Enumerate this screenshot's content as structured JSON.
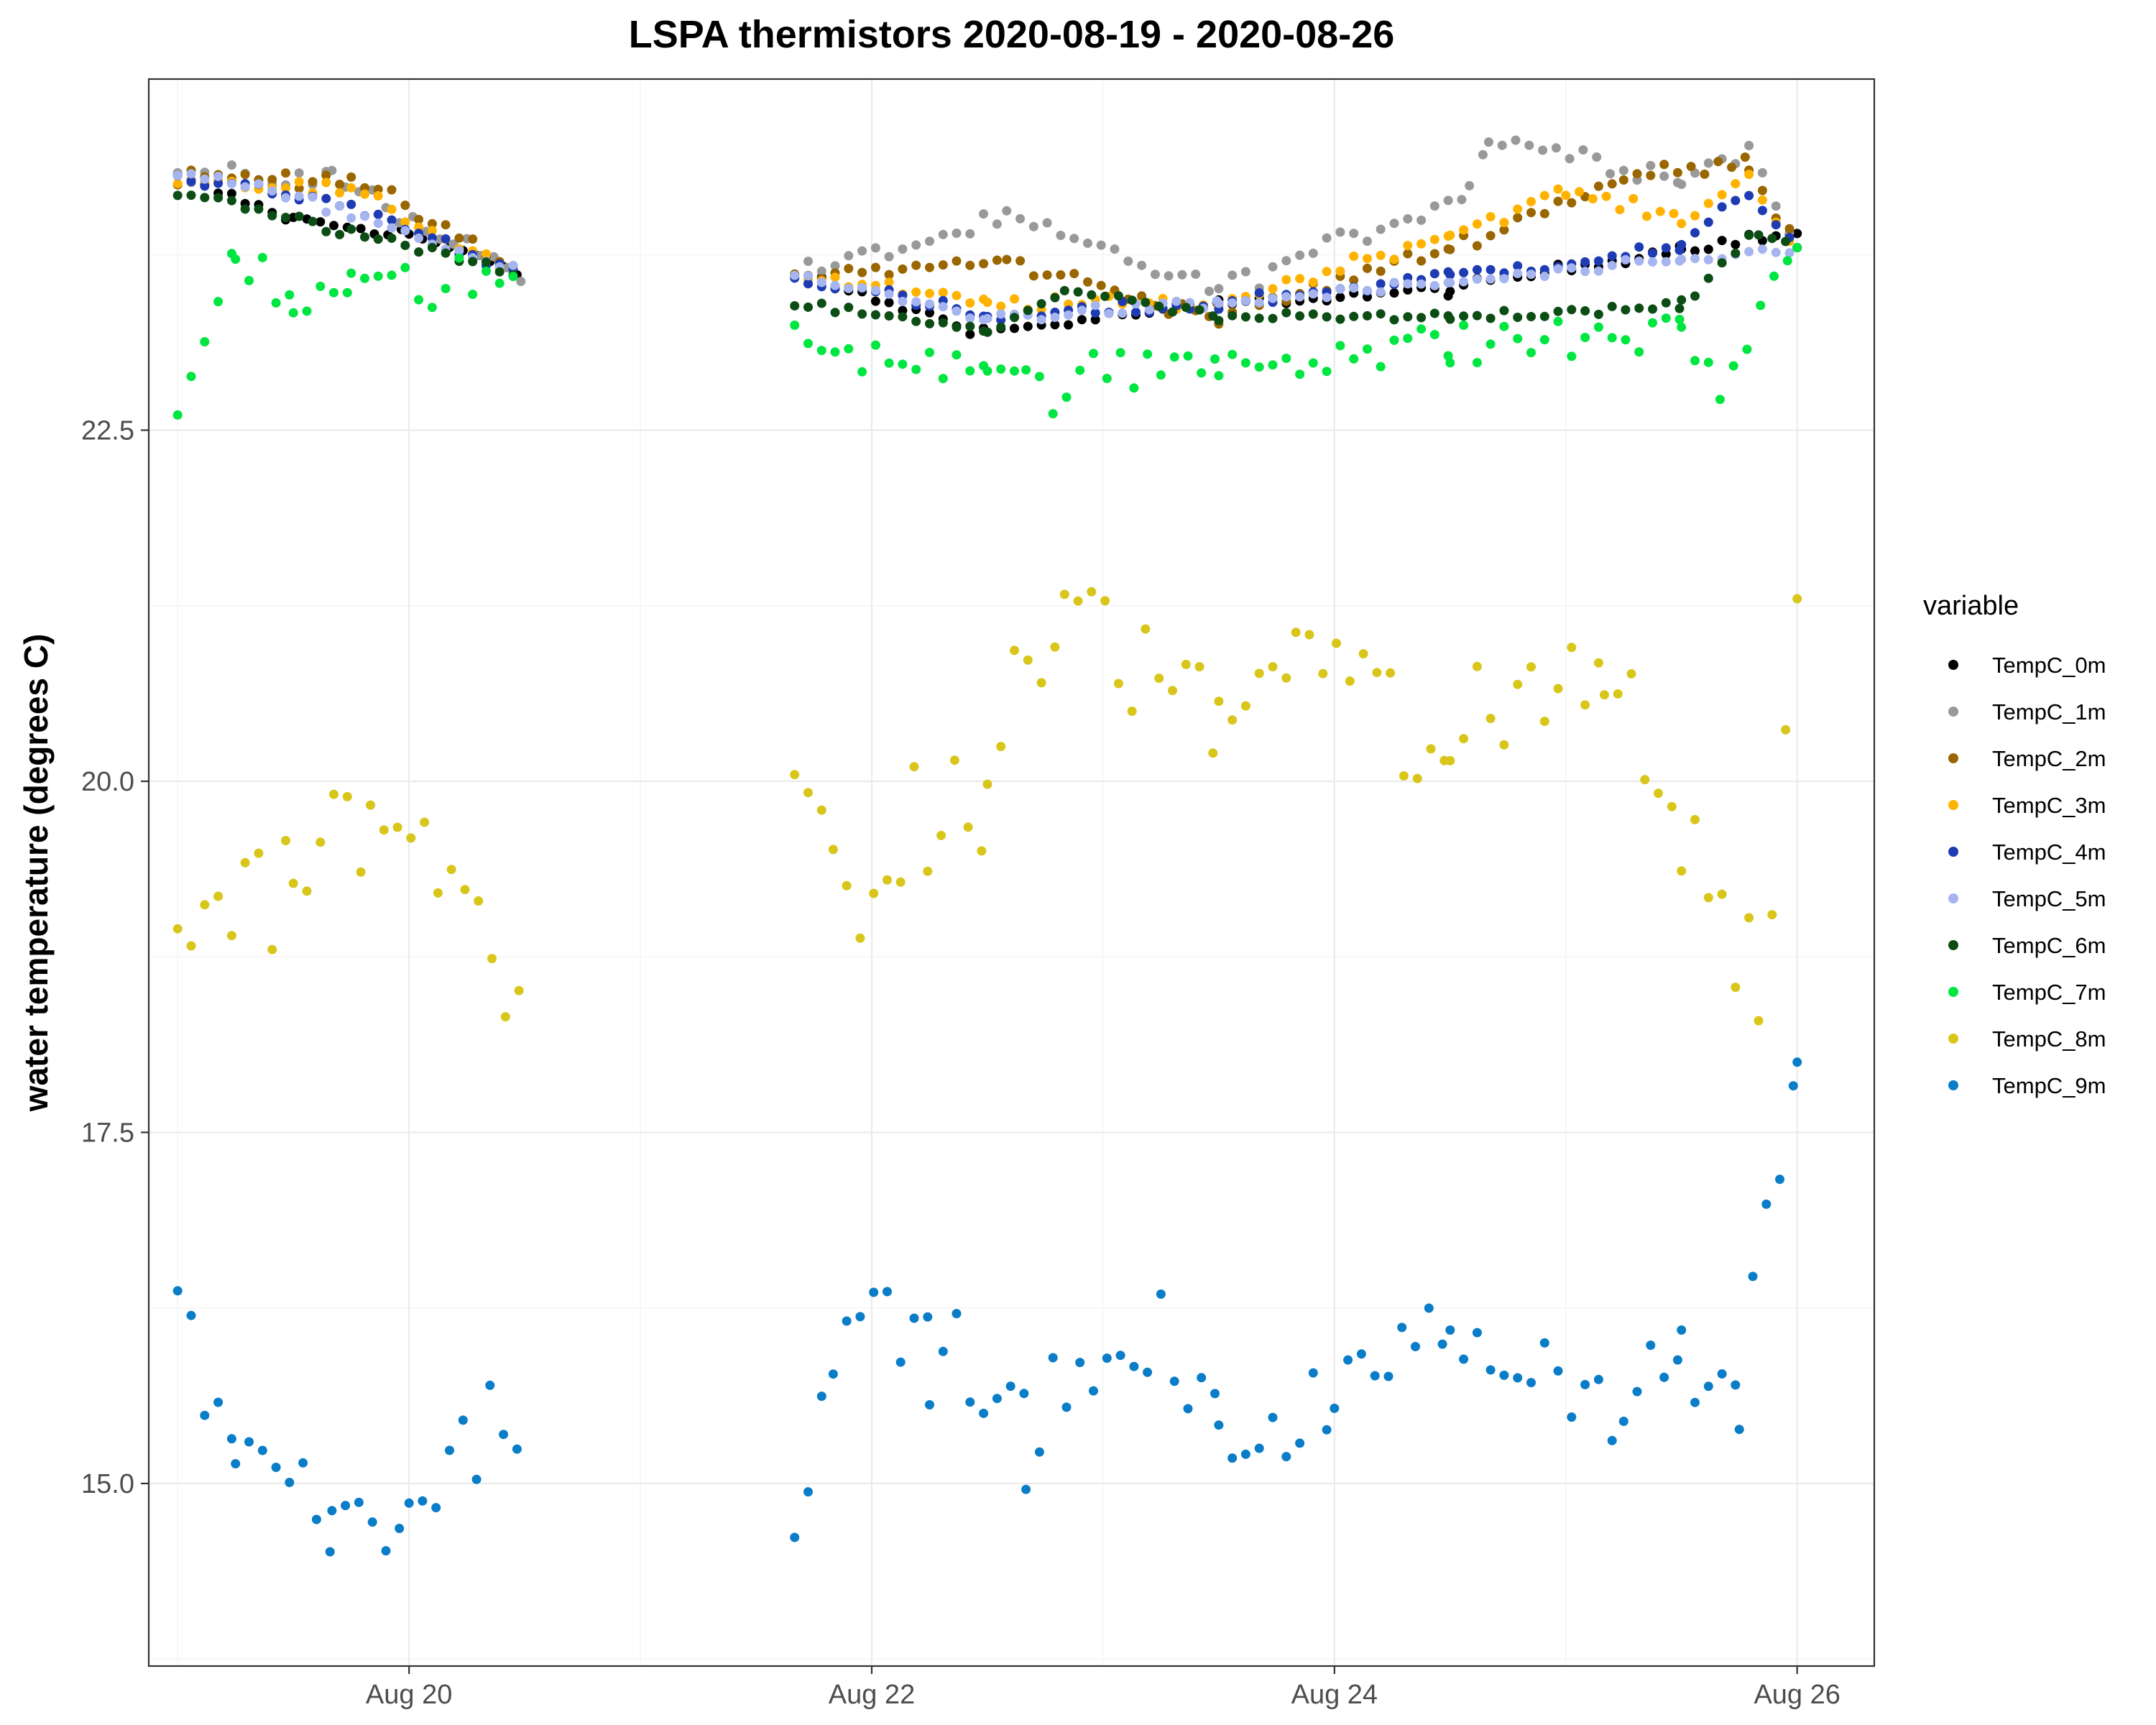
{
  "chart_data": {
    "type": "scatter",
    "title": "LSPA thermistors 2020-08-19 - 2020-08-26",
    "xlabel": "",
    "ylabel": "water temperature (degrees C)",
    "xlim": [
      "2020-08-18T21:00",
      "2020-08-26T08:00"
    ],
    "ylim": [
      13.7,
      25.0
    ],
    "x_ticks": [
      {
        "label": "Aug 20",
        "value": "2020-08-20"
      },
      {
        "label": "Aug 22",
        "value": "2020-08-22"
      },
      {
        "label": "Aug 24",
        "value": "2020-08-24"
      },
      {
        "label": "Aug 26",
        "value": "2020-08-26"
      }
    ],
    "y_ticks": [
      {
        "label": "15.0",
        "value": 15.0
      },
      {
        "label": "17.5",
        "value": 17.5
      },
      {
        "label": "20.0",
        "value": 20.0
      },
      {
        "label": "22.5",
        "value": 22.5
      }
    ],
    "grid": true,
    "legend": {
      "title": "variable",
      "position": "right"
    },
    "data_gap": {
      "start": "2020-08-20T12:00",
      "end": "2020-08-21T16:00"
    },
    "series": [
      {
        "name": "TempC_0m",
        "color": "#000000",
        "x": [
          "2020-08-19T00:00",
          "2020-08-19T12:00",
          "2020-08-20T00:00",
          "2020-08-20T12:00",
          "2020-08-21T16:00",
          "2020-08-22T12:00",
          "2020-08-23T12:00",
          "2020-08-24T12:00",
          "2020-08-25T12:00",
          "2020-08-26T00:00"
        ],
        "y": [
          24.3,
          24.0,
          23.9,
          23.6,
          23.6,
          23.2,
          23.4,
          23.5,
          23.8,
          23.9
        ]
      },
      {
        "name": "TempC_1m",
        "color": "#999999",
        "x": [
          "2020-08-19T00:00",
          "2020-08-19T16:00",
          "2020-08-20T12:00",
          "2020-08-21T16:00",
          "2020-08-22T14:00",
          "2020-08-23T12:00",
          "2020-08-24T14:00",
          "2020-08-24T16:00",
          "2020-08-25T12:00",
          "2020-08-25T19:00",
          "2020-08-26T00:00"
        ],
        "y": [
          24.3,
          24.3,
          23.6,
          23.6,
          24.0,
          23.5,
          24.2,
          24.6,
          24.3,
          24.5,
          23.8
        ]
      },
      {
        "name": "TempC_2m",
        "color": "#996600",
        "x": [
          "2020-08-19T00:00",
          "2020-08-19T18:00",
          "2020-08-20T12:00",
          "2020-08-21T16:00",
          "2020-08-22T14:00",
          "2020-08-23T12:00",
          "2020-08-24T12:00",
          "2020-08-25T06:00",
          "2020-08-25T19:00",
          "2020-08-26T00:00"
        ],
        "y": [
          24.3,
          24.3,
          23.6,
          23.6,
          23.7,
          23.3,
          23.8,
          24.3,
          24.4,
          23.8
        ]
      },
      {
        "name": "TempC_3m",
        "color": "#FFB300",
        "x": [
          "2020-08-19T00:00",
          "2020-08-19T18:00",
          "2020-08-20T12:00",
          "2020-08-21T16:00",
          "2020-08-22T12:00",
          "2020-08-23T12:00",
          "2020-08-24T12:00",
          "2020-08-25T00:00",
          "2020-08-25T12:00",
          "2020-08-25T19:00",
          "2020-08-26T00:00"
        ],
        "y": [
          24.3,
          24.2,
          23.6,
          23.6,
          23.4,
          23.4,
          23.9,
          24.2,
          24.0,
          24.3,
          23.8
        ]
      },
      {
        "name": "TempC_4m",
        "color": "#1F3BB3",
        "x": [
          "2020-08-19T00:00",
          "2020-08-19T18:00",
          "2020-08-20T12:00",
          "2020-08-21T16:00",
          "2020-08-22T12:00",
          "2020-08-23T12:00",
          "2020-08-24T12:00",
          "2020-08-25T12:00",
          "2020-08-25T19:00",
          "2020-08-26T00:00"
        ],
        "y": [
          24.3,
          24.1,
          23.6,
          23.6,
          23.3,
          23.4,
          23.6,
          23.8,
          24.2,
          23.8
        ]
      },
      {
        "name": "TempC_5m",
        "color": "#A6B5F0",
        "x": [
          "2020-08-19T00:00",
          "2020-08-19T18:00",
          "2020-08-20T12:00",
          "2020-08-21T16:00",
          "2020-08-22T12:00",
          "2020-08-23T12:00",
          "2020-08-24T12:00",
          "2020-08-25T12:00",
          "2020-08-26T00:00"
        ],
        "y": [
          24.35,
          24.05,
          23.6,
          23.6,
          23.3,
          23.4,
          23.55,
          23.7,
          23.8
        ]
      },
      {
        "name": "TempC_6m",
        "color": "#0B4D14",
        "x": [
          "2020-08-19T00:00",
          "2020-08-19T18:00",
          "2020-08-20T12:00",
          "2020-08-21T16:00",
          "2020-08-22T12:00",
          "2020-08-22T20:00",
          "2020-08-23T12:00",
          "2020-08-24T12:00",
          "2020-08-25T12:00",
          "2020-08-25T20:00",
          "2020-08-26T00:00"
        ],
        "y": [
          24.2,
          23.9,
          23.6,
          23.4,
          23.2,
          23.5,
          23.3,
          23.3,
          23.4,
          23.9,
          23.8
        ]
      },
      {
        "name": "TempC_7m",
        "color": "#00E640",
        "x": [
          "2020-08-19T00:00",
          "2020-08-19T06:00",
          "2020-08-19T12:00",
          "2020-08-19T18:00",
          "2020-08-20T12:00",
          "2020-08-21T16:00",
          "2020-08-22T12:00",
          "2020-08-22T16:00",
          "2020-08-23T12:00",
          "2020-08-24T12:00",
          "2020-08-25T12:00",
          "2020-08-25T16:00",
          "2020-08-26T00:00"
        ],
        "y": [
          22.6,
          23.8,
          23.4,
          23.5,
          23.6,
          23.1,
          23.0,
          22.8,
          23.0,
          23.1,
          23.2,
          22.8,
          23.8
        ]
      },
      {
        "name": "TempC_8m",
        "color": "#D9C61A",
        "x": [
          "2020-08-19T00:00",
          "2020-08-19T12:00",
          "2020-08-19T20:00",
          "2020-08-20T12:00",
          "2020-08-21T16:00",
          "2020-08-21T20:00",
          "2020-08-22T12:00",
          "2020-08-22T20:00",
          "2020-08-23T12:00",
          "2020-08-23T20:00",
          "2020-08-24T12:00",
          "2020-08-25T04:00",
          "2020-08-25T12:00",
          "2020-08-25T20:00",
          "2020-08-26T00:00"
        ],
        "y": [
          19.0,
          19.4,
          19.7,
          18.8,
          20.0,
          19.0,
          20.0,
          21.3,
          20.4,
          21.0,
          20.1,
          21.0,
          19.6,
          18.5,
          21.3
        ]
      },
      {
        "name": "TempC_9m",
        "color": "#0A7DC9",
        "x": [
          "2020-08-19T00:00",
          "2020-08-19T06:00",
          "2020-08-19T16:00",
          "2020-08-20T00:00",
          "2020-08-20T12:00",
          "2020-08-21T16:00",
          "2020-08-21T20:00",
          "2020-08-22T06:00",
          "2020-08-22T16:00",
          "2020-08-23T06:00",
          "2020-08-23T12:00",
          "2020-08-24T00:00",
          "2020-08-24T12:00",
          "2020-08-25T06:00",
          "2020-08-25T12:00",
          "2020-08-25T18:00",
          "2020-08-26T00:00"
        ],
        "y": [
          16.2,
          15.3,
          14.8,
          14.9,
          15.6,
          14.7,
          16.2,
          16.0,
          15.4,
          16.0,
          15.3,
          15.6,
          16.1,
          15.6,
          15.9,
          15.6,
          18.0
        ]
      }
    ]
  }
}
